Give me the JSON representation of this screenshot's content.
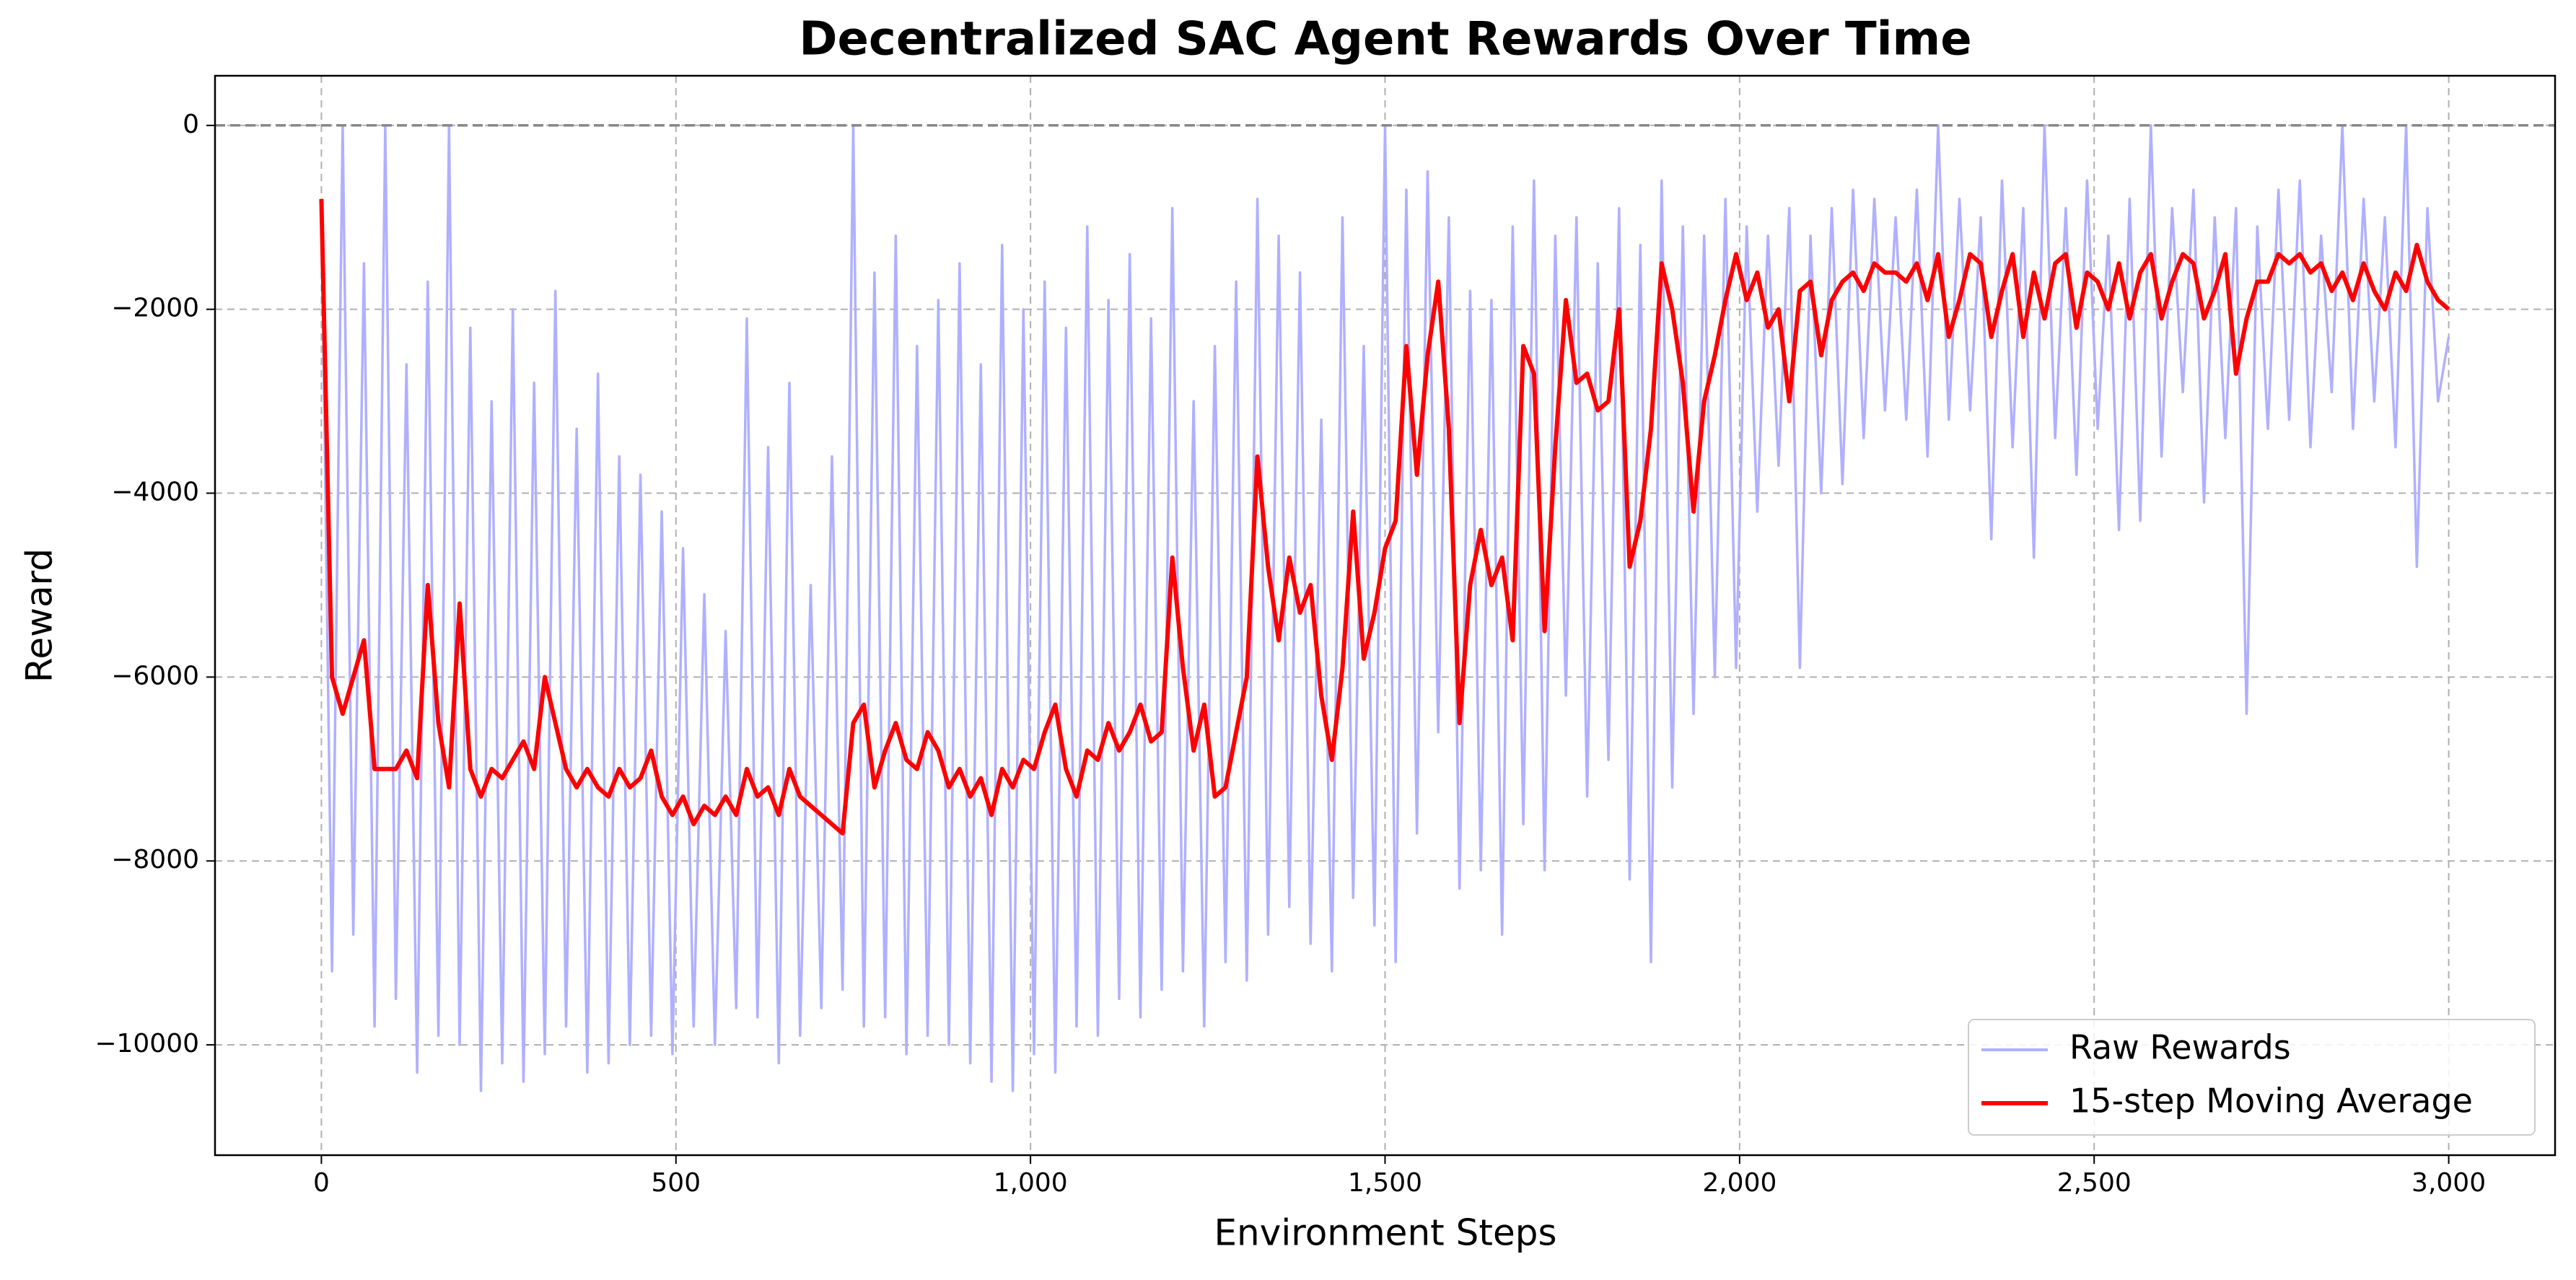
{
  "chart_data": {
    "type": "line",
    "title": "Decentralized SAC Agent Rewards Over Time",
    "x_label": "Environment Steps",
    "y_label": "Reward",
    "x": [
      0,
      15,
      30,
      45,
      60,
      75,
      90,
      105,
      120,
      135,
      150,
      165,
      180,
      195,
      210,
      225,
      240,
      255,
      270,
      285,
      300,
      315,
      330,
      345,
      360,
      375,
      390,
      405,
      420,
      435,
      450,
      465,
      480,
      495,
      510,
      525,
      540,
      555,
      570,
      585,
      600,
      615,
      630,
      645,
      660,
      675,
      690,
      705,
      720,
      735,
      750,
      765,
      780,
      795,
      810,
      825,
      840,
      855,
      870,
      885,
      900,
      915,
      930,
      945,
      960,
      975,
      990,
      1005,
      1020,
      1035,
      1050,
      1065,
      1080,
      1095,
      1110,
      1125,
      1140,
      1155,
      1170,
      1185,
      1200,
      1215,
      1230,
      1245,
      1260,
      1275,
      1290,
      1305,
      1320,
      1335,
      1350,
      1365,
      1380,
      1395,
      1410,
      1425,
      1440,
      1455,
      1470,
      1485,
      1500,
      1515,
      1530,
      1545,
      1560,
      1575,
      1590,
      1605,
      1620,
      1635,
      1650,
      1665,
      1680,
      1695,
      1710,
      1725,
      1740,
      1755,
      1770,
      1785,
      1800,
      1815,
      1830,
      1845,
      1860,
      1875,
      1890,
      1905,
      1920,
      1935,
      1950,
      1965,
      1980,
      1995,
      2010,
      2025,
      2040,
      2055,
      2070,
      2085,
      2100,
      2115,
      2130,
      2145,
      2160,
      2175,
      2190,
      2205,
      2220,
      2235,
      2250,
      2265,
      2280,
      2295,
      2310,
      2325,
      2340,
      2355,
      2370,
      2385,
      2400,
      2415,
      2430,
      2445,
      2460,
      2475,
      2490,
      2505,
      2520,
      2535,
      2550,
      2565,
      2580,
      2595,
      2610,
      2625,
      2640,
      2655,
      2670,
      2685,
      2700,
      2715,
      2730,
      2745,
      2760,
      2775,
      2790,
      2805,
      2820,
      2835,
      2850,
      2865,
      2880,
      2895,
      2910,
      2925,
      2940,
      2955,
      2970,
      2985,
      3000
    ],
    "series": [
      {
        "name": "Raw Rewards",
        "color": "#b0b0ff",
        "values": [
          -800,
          -9200,
          0,
          -8800,
          -1500,
          -9800,
          0,
          -9500,
          -2600,
          -10300,
          -1700,
          -9900,
          0,
          -10000,
          -2200,
          -10500,
          -3000,
          -10200,
          -2000,
          -10400,
          -2800,
          -10100,
          -1800,
          -9800,
          -3300,
          -10300,
          -2700,
          -10200,
          -3600,
          -10000,
          -3800,
          -9900,
          -4200,
          -10100,
          -4600,
          -9800,
          -5100,
          -10000,
          -5500,
          -9600,
          -2100,
          -9700,
          -3500,
          -10200,
          -2800,
          -9900,
          -5000,
          -9600,
          -3600,
          -9400,
          0,
          -9800,
          -1600,
          -9700,
          -1200,
          -10100,
          -2400,
          -9900,
          -1900,
          -10000,
          -1500,
          -10200,
          -2600,
          -10400,
          -1300,
          -10500,
          -2000,
          -10100,
          -1700,
          -10300,
          -2200,
          -9800,
          -1100,
          -9900,
          -1900,
          -9500,
          -1400,
          -9700,
          -2100,
          -9400,
          -900,
          -9200,
          -3000,
          -9800,
          -2400,
          -9100,
          -1700,
          -9300,
          -800,
          -8800,
          -1200,
          -8500,
          -1600,
          -8900,
          -3200,
          -9200,
          -1000,
          -8400,
          -2400,
          -8700,
          0,
          -9100,
          -700,
          -7700,
          -500,
          -6600,
          -1000,
          -8300,
          -1800,
          -8100,
          -1900,
          -8800,
          -1100,
          -7600,
          -600,
          -8100,
          -1200,
          -6200,
          -1000,
          -7300,
          -1500,
          -6900,
          -900,
          -8200,
          -1300,
          -9100,
          -600,
          -7200,
          -1100,
          -6400,
          -1200,
          -6000,
          -800,
          -5900,
          -1100,
          -4200,
          -1200,
          -3700,
          -900,
          -5900,
          -1200,
          -4000,
          -900,
          -3900,
          -700,
          -3400,
          -800,
          -3100,
          -1000,
          -3200,
          -700,
          -3600,
          0,
          -3200,
          -800,
          -3100,
          -1000,
          -4500,
          -600,
          -3500,
          -900,
          -4700,
          0,
          -3400,
          -900,
          -3800,
          -600,
          -3300,
          -1200,
          -4400,
          -800,
          -4300,
          0,
          -3600,
          -900,
          -2900,
          -700,
          -4100,
          -1000,
          -3400,
          -900,
          -6400,
          -1100,
          -3300,
          -700,
          -3200,
          -600,
          -3500,
          -1200,
          -2900,
          0,
          -3300,
          -800,
          -3000,
          -1000,
          -3500,
          0,
          -4800,
          -900,
          -3000,
          -2300
        ]
      },
      {
        "name": "15-step Moving Average",
        "color": "#ff0000",
        "values": [
          -800,
          -6000,
          -6400,
          -6000,
          -5600,
          -7000,
          -7000,
          -7000,
          -6800,
          -7100,
          -5000,
          -6500,
          -7200,
          -5200,
          -7000,
          -7300,
          -7000,
          -7100,
          -6900,
          -6700,
          -7000,
          -6000,
          -6500,
          -7000,
          -7200,
          -7000,
          -7200,
          -7300,
          -7000,
          -7200,
          -7100,
          -6800,
          -7300,
          -7500,
          -7300,
          -7600,
          -7400,
          -7500,
          -7300,
          -7500,
          -7000,
          -7300,
          -7200,
          -7500,
          -7000,
          -7300,
          -7400,
          -7500,
          -7600,
          -7700,
          -6500,
          -6300,
          -7200,
          -6800,
          -6500,
          -6900,
          -7000,
          -6600,
          -6800,
          -7200,
          -7000,
          -7300,
          -7100,
          -7500,
          -7000,
          -7200,
          -6900,
          -7000,
          -6600,
          -6300,
          -7000,
          -7300,
          -6800,
          -6900,
          -6500,
          -6800,
          -6600,
          -6300,
          -6700,
          -6600,
          -4700,
          -5900,
          -6800,
          -6300,
          -7300,
          -7200,
          -6600,
          -6000,
          -3600,
          -4800,
          -5600,
          -4700,
          -5300,
          -5000,
          -6200,
          -6900,
          -5900,
          -4200,
          -5800,
          -5300,
          -4600,
          -4300,
          -2400,
          -3800,
          -2500,
          -1700,
          -3300,
          -6500,
          -5000,
          -4400,
          -5000,
          -4700,
          -5600,
          -2400,
          -2700,
          -5500,
          -3500,
          -1900,
          -2800,
          -2700,
          -3100,
          -3000,
          -2000,
          -4800,
          -4300,
          -3300,
          -1500,
          -2000,
          -2800,
          -4200,
          -3000,
          -2500,
          -1900,
          -1400,
          -1900,
          -1600,
          -2200,
          -2000,
          -3000,
          -1800,
          -1700,
          -2500,
          -1900,
          -1700,
          -1600,
          -1800,
          -1500,
          -1600,
          -1600,
          -1700,
          -1500,
          -1900,
          -1400,
          -2300,
          -1900,
          -1400,
          -1500,
          -2300,
          -1800,
          -1400,
          -2300,
          -1600,
          -2100,
          -1500,
          -1400,
          -2200,
          -1600,
          -1700,
          -2000,
          -1500,
          -2100,
          -1600,
          -1400,
          -2100,
          -1700,
          -1400,
          -1500,
          -2100,
          -1800,
          -1400,
          -2700,
          -2100,
          -1700,
          -1700,
          -1400,
          -1500,
          -1400,
          -1600,
          -1500,
          -1800,
          -1600,
          -1900,
          -1500,
          -1800,
          -2000,
          -1600,
          -1800,
          -1300,
          -1700,
          -1900,
          -2000
        ]
      }
    ],
    "xlim": [
      -150,
      3150
    ],
    "ylim": [
      -11200,
      540
    ],
    "xticks": [
      0,
      500,
      {
        "value": 1000,
        "label": "1,000"
      },
      {
        "value": 1500,
        "label": "1,500"
      },
      {
        "value": 2000,
        "label": "2,000"
      },
      {
        "value": 2500,
        "label": "2,500"
      },
      {
        "value": 3000,
        "label": "3,000"
      }
    ],
    "yticks": [
      {
        "value": 0,
        "label": "0"
      },
      {
        "value": -2000,
        "label": "−2000"
      },
      {
        "value": -4000,
        "label": "−4000"
      },
      {
        "value": -6000,
        "label": "−6000"
      },
      {
        "value": -8000,
        "label": "−8000"
      },
      {
        "value": -10000,
        "label": "−10000"
      }
    ],
    "reference_line": 0,
    "grid": true,
    "legend": "lower right"
  }
}
